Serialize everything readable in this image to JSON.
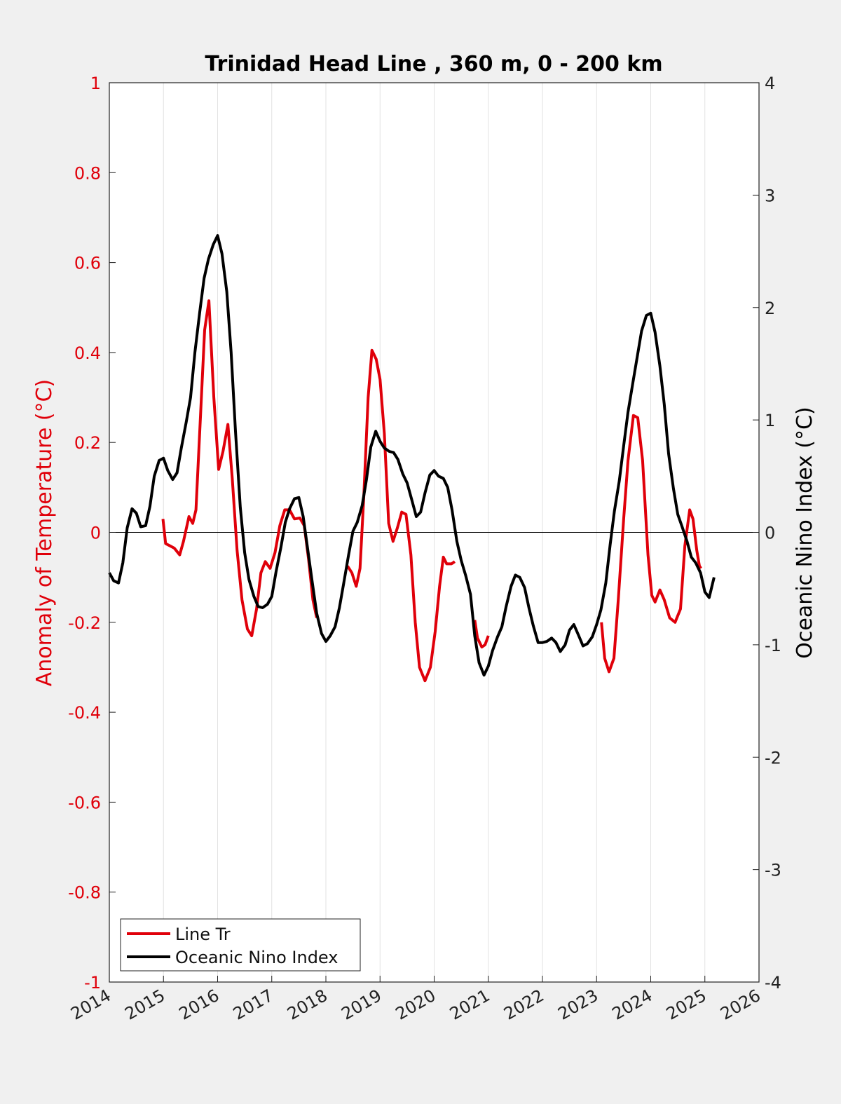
{
  "chart_data": {
    "type": "line",
    "title": "Trinidad Head Line , 360 m, 0 - 200 km",
    "ylabel_left": "Anomaly of Temperature (°C)",
    "ylabel_right": "Oceanic Nino Index (°C)",
    "xlim": [
      2014,
      2026
    ],
    "ylim_left": [
      -1,
      1
    ],
    "ylim_right": [
      -4,
      4
    ],
    "x_ticks": [
      "2014",
      "2015",
      "2016",
      "2017",
      "2018",
      "2019",
      "2020",
      "2021",
      "2022",
      "2023",
      "2024",
      "2025",
      "2026"
    ],
    "y_ticks_left": [
      "-1",
      "-0.8",
      "-0.6",
      "-0.4",
      "-0.2",
      "0",
      "0.2",
      "0.4",
      "0.6",
      "0.8",
      "1"
    ],
    "y_ticks_right": [
      "-4",
      "-3",
      "-2",
      "-1",
      "0",
      "1",
      "2",
      "3",
      "4"
    ],
    "grid": "vertical",
    "zero_line": true,
    "legend_position": "bottom-left",
    "colors": {
      "line_tr": "#e0000a",
      "oni": "#000000",
      "left_axis": "#e0000a",
      "right_axis": "#222222"
    },
    "series": [
      {
        "name": "Line Tr",
        "axis": "left",
        "color": "#e0000a",
        "segments": [
          [
            [
              2014.99,
              0.03
            ],
            [
              2015.04,
              -0.025
            ],
            [
              2015.12,
              -0.03
            ],
            [
              2015.2,
              -0.035
            ],
            [
              2015.3,
              -0.05
            ],
            [
              2015.37,
              -0.02
            ],
            [
              2015.47,
              0.035
            ],
            [
              2015.54,
              0.02
            ],
            [
              2015.6,
              0.05
            ],
            [
              2015.68,
              0.25
            ],
            [
              2015.76,
              0.45
            ],
            [
              2015.84,
              0.515
            ],
            [
              2015.93,
              0.3
            ],
            [
              2016.02,
              0.14
            ],
            [
              2016.1,
              0.18
            ],
            [
              2016.19,
              0.24
            ],
            [
              2016.27,
              0.12
            ],
            [
              2016.36,
              -0.04
            ],
            [
              2016.45,
              -0.15
            ],
            [
              2016.55,
              -0.215
            ],
            [
              2016.63,
              -0.23
            ],
            [
              2016.72,
              -0.17
            ],
            [
              2016.8,
              -0.09
            ],
            [
              2016.88,
              -0.065
            ],
            [
              2016.97,
              -0.08
            ],
            [
              2017.06,
              -0.045
            ],
            [
              2017.15,
              0.015
            ],
            [
              2017.24,
              0.05
            ],
            [
              2017.33,
              0.05
            ],
            [
              2017.42,
              0.03
            ],
            [
              2017.52,
              0.032
            ],
            [
              2017.6,
              0.015
            ],
            [
              2017.68,
              -0.06
            ],
            [
              2017.76,
              -0.15
            ],
            [
              2017.83,
              -0.19
            ]
          ],
          [
            [
              2018.4,
              -0.075
            ],
            [
              2018.48,
              -0.09
            ],
            [
              2018.56,
              -0.12
            ],
            [
              2018.63,
              -0.08
            ],
            [
              2018.7,
              0.08
            ],
            [
              2018.78,
              0.3
            ],
            [
              2018.85,
              0.405
            ],
            [
              2018.93,
              0.385
            ],
            [
              2019.0,
              0.34
            ],
            [
              2019.08,
              0.22
            ],
            [
              2019.16,
              0.02
            ],
            [
              2019.24,
              -0.02
            ],
            [
              2019.32,
              0.01
            ],
            [
              2019.4,
              0.045
            ],
            [
              2019.48,
              0.04
            ],
            [
              2019.57,
              -0.05
            ],
            [
              2019.65,
              -0.2
            ],
            [
              2019.73,
              -0.3
            ],
            [
              2019.83,
              -0.33
            ],
            [
              2019.93,
              -0.3
            ],
            [
              2020.02,
              -0.22
            ],
            [
              2020.1,
              -0.12
            ],
            [
              2020.17,
              -0.055
            ],
            [
              2020.23,
              -0.07
            ],
            [
              2020.32,
              -0.07
            ],
            [
              2020.38,
              -0.065
            ]
          ],
          [
            [
              2020.75,
              -0.195
            ],
            [
              2020.8,
              -0.235
            ],
            [
              2020.88,
              -0.255
            ],
            [
              2020.94,
              -0.25
            ],
            [
              2021.0,
              -0.23
            ]
          ],
          [
            [
              2023.09,
              -0.2
            ],
            [
              2023.15,
              -0.28
            ],
            [
              2023.23,
              -0.31
            ],
            [
              2023.32,
              -0.28
            ],
            [
              2023.4,
              -0.15
            ],
            [
              2023.5,
              0.03
            ],
            [
              2023.58,
              0.16
            ],
            [
              2023.68,
              0.26
            ],
            [
              2023.76,
              0.255
            ],
            [
              2023.85,
              0.16
            ],
            [
              2023.95,
              -0.05
            ],
            [
              2024.02,
              -0.14
            ],
            [
              2024.08,
              -0.155
            ],
            [
              2024.17,
              -0.128
            ],
            [
              2024.25,
              -0.15
            ],
            [
              2024.35,
              -0.19
            ],
            [
              2024.45,
              -0.2
            ],
            [
              2024.55,
              -0.17
            ],
            [
              2024.63,
              -0.03
            ],
            [
              2024.72,
              0.05
            ],
            [
              2024.78,
              0.03
            ],
            [
              2024.85,
              -0.04
            ],
            [
              2024.9,
              -0.075
            ],
            [
              2024.93,
              -0.08
            ]
          ]
        ]
      },
      {
        "name": "Oceanic Nino Index",
        "axis": "right",
        "color": "#000000",
        "segments": [
          [
            [
              2014.0,
              -0.36
            ],
            [
              2014.08,
              -0.43
            ],
            [
              2014.17,
              -0.45
            ],
            [
              2014.25,
              -0.27
            ],
            [
              2014.33,
              0.04
            ],
            [
              2014.42,
              0.21
            ],
            [
              2014.5,
              0.17
            ],
            [
              2014.58,
              0.05
            ],
            [
              2014.67,
              0.06
            ],
            [
              2014.75,
              0.23
            ],
            [
              2014.83,
              0.5
            ],
            [
              2014.92,
              0.64
            ],
            [
              2015.0,
              0.66
            ],
            [
              2015.08,
              0.55
            ],
            [
              2015.17,
              0.47
            ],
            [
              2015.25,
              0.53
            ],
            [
              2015.33,
              0.75
            ],
            [
              2015.42,
              0.98
            ],
            [
              2015.5,
              1.2
            ],
            [
              2015.58,
              1.6
            ],
            [
              2015.67,
              1.96
            ],
            [
              2015.75,
              2.26
            ],
            [
              2015.83,
              2.43
            ],
            [
              2015.92,
              2.56
            ],
            [
              2016.0,
              2.64
            ],
            [
              2016.08,
              2.48
            ],
            [
              2016.17,
              2.14
            ],
            [
              2016.25,
              1.6
            ],
            [
              2016.33,
              0.9
            ],
            [
              2016.42,
              0.22
            ],
            [
              2016.5,
              -0.18
            ],
            [
              2016.58,
              -0.42
            ],
            [
              2016.67,
              -0.57
            ],
            [
              2016.75,
              -0.66
            ],
            [
              2016.83,
              -0.67
            ],
            [
              2016.92,
              -0.64
            ],
            [
              2017.0,
              -0.57
            ],
            [
              2017.08,
              -0.35
            ],
            [
              2017.17,
              -0.13
            ],
            [
              2017.25,
              0.09
            ],
            [
              2017.33,
              0.21
            ],
            [
              2017.42,
              0.3
            ],
            [
              2017.5,
              0.31
            ],
            [
              2017.58,
              0.14
            ],
            [
              2017.67,
              -0.17
            ],
            [
              2017.75,
              -0.45
            ],
            [
              2017.83,
              -0.72
            ],
            [
              2017.92,
              -0.9
            ],
            [
              2018.0,
              -0.97
            ],
            [
              2018.08,
              -0.92
            ],
            [
              2018.17,
              -0.84
            ],
            [
              2018.25,
              -0.67
            ],
            [
              2018.33,
              -0.45
            ],
            [
              2018.42,
              -0.2
            ],
            [
              2018.5,
              0.01
            ],
            [
              2018.58,
              0.09
            ],
            [
              2018.67,
              0.24
            ],
            [
              2018.75,
              0.47
            ],
            [
              2018.83,
              0.76
            ],
            [
              2018.92,
              0.9
            ],
            [
              2019.0,
              0.81
            ],
            [
              2019.08,
              0.75
            ],
            [
              2019.17,
              0.72
            ],
            [
              2019.25,
              0.71
            ],
            [
              2019.33,
              0.65
            ],
            [
              2019.42,
              0.52
            ],
            [
              2019.5,
              0.44
            ],
            [
              2019.58,
              0.3
            ],
            [
              2019.67,
              0.14
            ],
            [
              2019.75,
              0.18
            ],
            [
              2019.83,
              0.35
            ],
            [
              2019.92,
              0.51
            ],
            [
              2020.0,
              0.55
            ],
            [
              2020.08,
              0.5
            ],
            [
              2020.17,
              0.48
            ],
            [
              2020.25,
              0.4
            ],
            [
              2020.33,
              0.2
            ],
            [
              2020.42,
              -0.08
            ],
            [
              2020.5,
              -0.25
            ],
            [
              2020.58,
              -0.38
            ],
            [
              2020.67,
              -0.55
            ],
            [
              2020.75,
              -0.92
            ],
            [
              2020.83,
              -1.16
            ],
            [
              2020.92,
              -1.27
            ],
            [
              2021.0,
              -1.19
            ],
            [
              2021.08,
              -1.05
            ],
            [
              2021.17,
              -0.93
            ],
            [
              2021.25,
              -0.84
            ],
            [
              2021.33,
              -0.66
            ],
            [
              2021.42,
              -0.48
            ],
            [
              2021.5,
              -0.38
            ],
            [
              2021.58,
              -0.4
            ],
            [
              2021.67,
              -0.49
            ],
            [
              2021.75,
              -0.67
            ],
            [
              2021.83,
              -0.83
            ],
            [
              2021.92,
              -0.98
            ],
            [
              2022.0,
              -0.98
            ],
            [
              2022.08,
              -0.97
            ],
            [
              2022.17,
              -0.94
            ],
            [
              2022.25,
              -0.98
            ],
            [
              2022.33,
              -1.06
            ],
            [
              2022.42,
              -1.0
            ],
            [
              2022.5,
              -0.87
            ],
            [
              2022.58,
              -0.82
            ],
            [
              2022.67,
              -0.92
            ],
            [
              2022.75,
              -1.01
            ],
            [
              2022.83,
              -0.99
            ],
            [
              2022.92,
              -0.93
            ],
            [
              2023.0,
              -0.82
            ],
            [
              2023.08,
              -0.69
            ],
            [
              2023.17,
              -0.45
            ],
            [
              2023.25,
              -0.11
            ],
            [
              2023.33,
              0.19
            ],
            [
              2023.42,
              0.46
            ],
            [
              2023.5,
              0.77
            ],
            [
              2023.58,
              1.07
            ],
            [
              2023.67,
              1.33
            ],
            [
              2023.75,
              1.56
            ],
            [
              2023.83,
              1.79
            ],
            [
              2023.92,
              1.93
            ],
            [
              2024.0,
              1.95
            ],
            [
              2024.08,
              1.78
            ],
            [
              2024.17,
              1.48
            ],
            [
              2024.25,
              1.14
            ],
            [
              2024.33,
              0.7
            ],
            [
              2024.42,
              0.39
            ],
            [
              2024.5,
              0.16
            ],
            [
              2024.58,
              0.05
            ],
            [
              2024.67,
              -0.08
            ],
            [
              2024.75,
              -0.22
            ],
            [
              2024.83,
              -0.27
            ],
            [
              2024.92,
              -0.36
            ],
            [
              2025.0,
              -0.53
            ],
            [
              2025.08,
              -0.58
            ],
            [
              2025.17,
              -0.4
            ]
          ]
        ]
      }
    ]
  },
  "legend": {
    "items": [
      {
        "label": "Line Tr",
        "color": "#e0000a"
      },
      {
        "label": "Oceanic Nino Index",
        "color": "#000000"
      }
    ]
  }
}
